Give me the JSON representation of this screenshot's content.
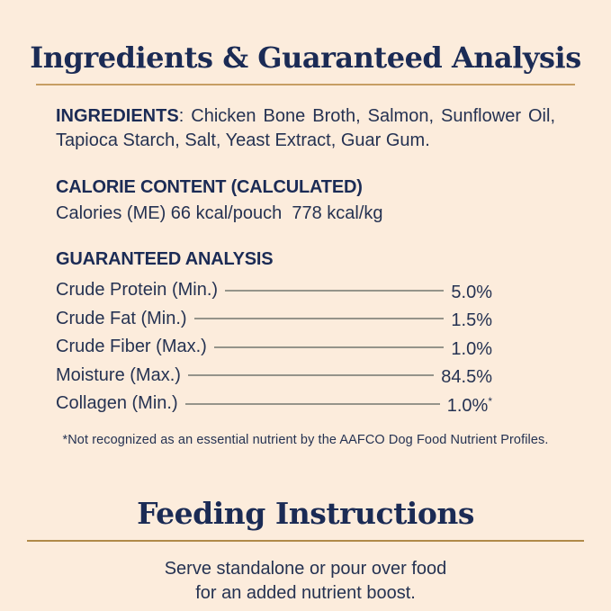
{
  "page": {
    "background_color": "#fcecdc",
    "navy_color": "#1b2b55",
    "gold_rule_color": "#c79e63",
    "leader_line_color": "#95948a"
  },
  "analysis_section": {
    "title": "Ingredients & Guaranteed Analysis",
    "ingredients_label": "INGREDIENTS",
    "ingredients_text": ": Chicken Bone Broth, Salmon, Sunflower Oil, Tapioca Starch, Salt, Yeast Extract, Guar Gum.",
    "calorie_heading": "CALORIE CONTENT (CALCULATED)",
    "calorie_text": "Calories (ME) 66 kcal/pouch  778 kcal/kg",
    "analysis_heading": "GUARANTEED ANALYSIS",
    "rows": [
      {
        "label": "Crude Protein (Min.)",
        "value": "5.0%",
        "marker": ""
      },
      {
        "label": "Crude Fat (Min.)",
        "value": "1.5%",
        "marker": ""
      },
      {
        "label": "Crude Fiber (Max.)",
        "value": "1.0%",
        "marker": ""
      },
      {
        "label": "Moisture (Max.)",
        "value": "84.5%",
        "marker": ""
      },
      {
        "label": "Collagen (Min.)",
        "value": "1.0%",
        "marker": "*"
      }
    ],
    "footnote": "*Not recognized as an essential nutrient by the AAFCO Dog Food Nutrient Profiles."
  },
  "feeding_section": {
    "title": "Feeding Instructions",
    "line1": "Serve standalone or pour over food",
    "line2": "for an added nutrient boost."
  }
}
